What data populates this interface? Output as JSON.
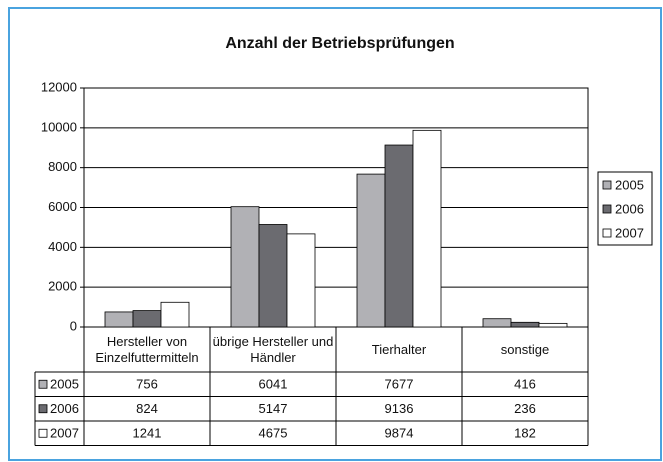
{
  "chart_data": {
    "type": "bar",
    "title": "Anzahl der Betriebsprüfungen",
    "categories": [
      "Hersteller von Einzelfuttermitteln",
      "übrige Hersteller und Händler",
      "Tierhalter",
      "sonstige"
    ],
    "series": [
      {
        "name": "2005",
        "color": "#b1b1b5",
        "values": [
          756,
          6041,
          7677,
          416
        ]
      },
      {
        "name": "2006",
        "color": "#6b6b70",
        "values": [
          824,
          5147,
          9136,
          236
        ]
      },
      {
        "name": "2007",
        "color": "#ffffff",
        "values": [
          1241,
          4675,
          9874,
          182
        ]
      }
    ],
    "ylim": [
      0,
      12000
    ],
    "yticks": [
      0,
      2000,
      4000,
      6000,
      8000,
      10000,
      12000
    ],
    "grid": true,
    "legend": "right"
  }
}
